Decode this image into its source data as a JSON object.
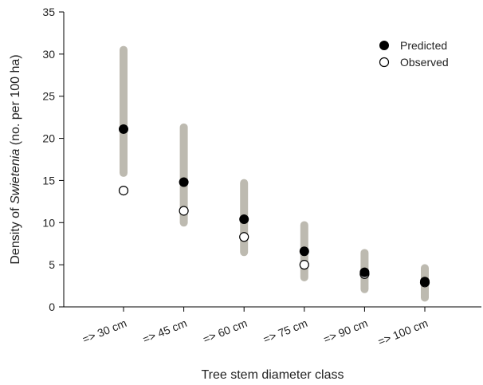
{
  "chart_data": {
    "type": "scatter",
    "categories": [
      "=> 30 cm",
      "=> 45 cm",
      "=> 60 cm",
      "=> 75 cm",
      "=> 90 cm",
      "=> 100 cm"
    ],
    "series": [
      {
        "name": "Predicted",
        "marker": "filled-circle",
        "color": "#000000",
        "values": [
          21.1,
          14.8,
          10.4,
          6.6,
          4.1,
          3.0
        ]
      },
      {
        "name": "Observed",
        "marker": "open-circle",
        "color": "#000000",
        "values": [
          13.8,
          11.4,
          8.3,
          5.0,
          3.9,
          2.9
        ]
      }
    ],
    "ranges": {
      "color": "#bdbab0",
      "low": [
        15.9,
        10.0,
        6.5,
        3.5,
        2.1,
        1.1
      ],
      "high": [
        30.5,
        21.3,
        14.7,
        9.7,
        6.4,
        4.6
      ]
    },
    "xlabel": "Tree stem diameter class",
    "ylabel_prefix": "Density of ",
    "ylabel_italic": "Swietenia",
    "ylabel_suffix": " (no. per 100 ha)",
    "ylim": [
      0,
      35
    ],
    "yticks": [
      0,
      5,
      10,
      15,
      20,
      25,
      30,
      35
    ],
    "legend_position": "top-right",
    "grid": false
  }
}
